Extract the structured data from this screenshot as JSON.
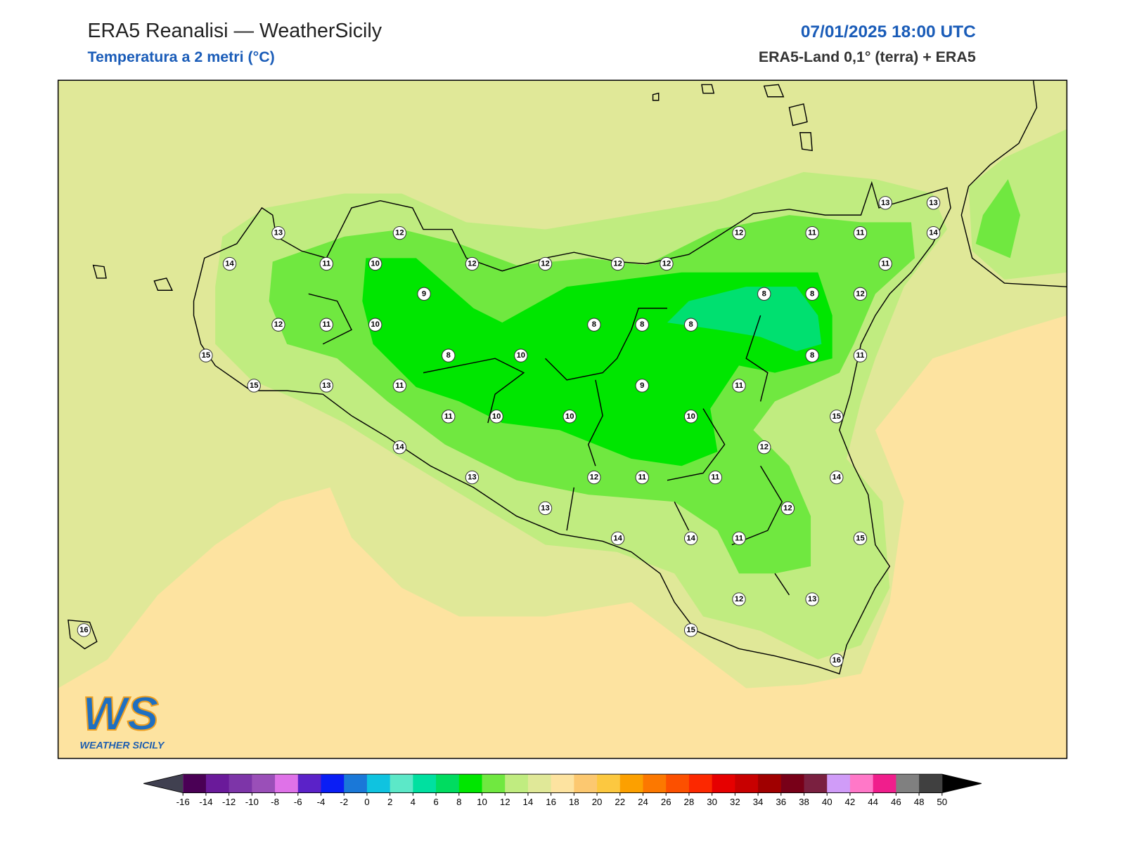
{
  "header": {
    "title": "ERA5 Reanalisi — WeatherSicily",
    "subtitle": "Temperatura a 2 metri (°C)",
    "datetime": "07/01/2025 18:00 UTC",
    "source": "ERA5-Land 0,1° (terra) + ERA5"
  },
  "stations": [
    13,
    12,
    14,
    11,
    10,
    12,
    12,
    12,
    12,
    12,
    11,
    11,
    13,
    13,
    14,
    11,
    9,
    8,
    8,
    12,
    12,
    11,
    10,
    8,
    8,
    8,
    15,
    8,
    10,
    8,
    11,
    15,
    13,
    11,
    9,
    11,
    11,
    10,
    10,
    10,
    15,
    14,
    12,
    13,
    12,
    11,
    11,
    14,
    13,
    12,
    14,
    14,
    11,
    15,
    12,
    13,
    16,
    15,
    16
  ],
  "colorbar": {
    "ticks": [
      -16,
      -14,
      -12,
      -10,
      -8,
      -6,
      -4,
      -2,
      0,
      2,
      4,
      6,
      8,
      10,
      12,
      14,
      16,
      18,
      20,
      22,
      24,
      26,
      28,
      30,
      32,
      34,
      36,
      38,
      40,
      42,
      44,
      46,
      48,
      50
    ],
    "colors": [
      "#4a0055",
      "#6a1a9a",
      "#7d35a8",
      "#9a4fb8",
      "#df72e8",
      "#5b22c8",
      "#0a1ef5",
      "#1a78d8",
      "#0fc3e0",
      "#5ce8c8",
      "#00e0a0",
      "#00dc60",
      "#00e600",
      "#70e840",
      "#c0ec80",
      "#e0e898",
      "#fde3a0",
      "#fcc870",
      "#fcc840",
      "#fca000",
      "#fc7800",
      "#fc5000",
      "#fc2800",
      "#e60000",
      "#c80000",
      "#a00000",
      "#780018",
      "#7a2040",
      "#d09cf8",
      "#ff78c8",
      "#f01e8c",
      "#808080",
      "#404040"
    ],
    "under_color": "#404050",
    "over_color": "#000000"
  },
  "logo": {
    "mark": "WS",
    "name": "WEATHER SICILY"
  }
}
